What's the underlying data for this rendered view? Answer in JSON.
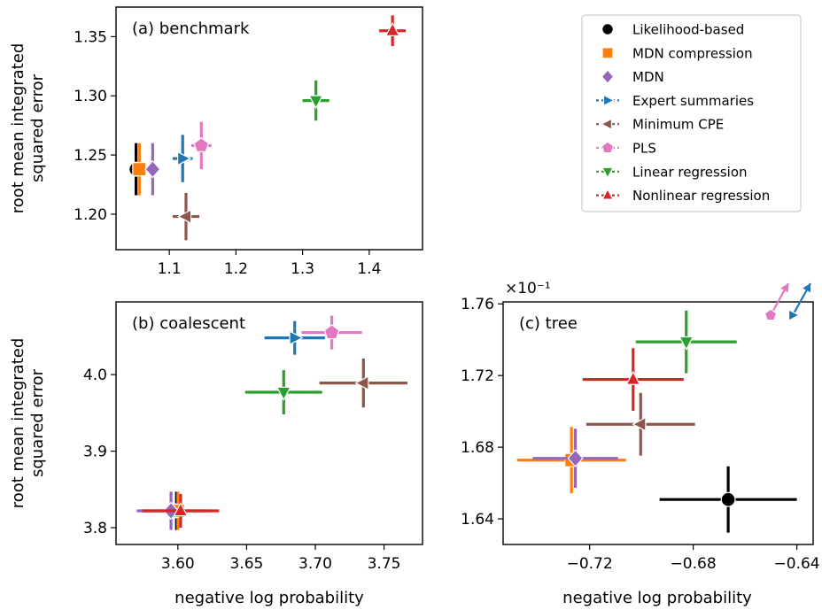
{
  "ylabel": "root mean integrated\nsquared error",
  "xlabel": "negative log probability",
  "legend_loc": "upper-right",
  "legend": [
    {
      "label": "Likelihood-based",
      "marker": "circle",
      "color": "#000000"
    },
    {
      "label": "MDN compression",
      "marker": "square",
      "color": "#ff7f0e"
    },
    {
      "label": "MDN",
      "marker": "diamond",
      "color": "#9467bd"
    },
    {
      "label": "Expert summaries",
      "marker": "tri-right",
      "color": "#1f77b4"
    },
    {
      "label": "Minimum CPE",
      "marker": "tri-left",
      "color": "#8c564b"
    },
    {
      "label": "PLS",
      "marker": "pentagon",
      "color": "#e377c2"
    },
    {
      "label": "Linear regression",
      "marker": "tri-down",
      "color": "#2ca02c"
    },
    {
      "label": "Nonlinear regression",
      "marker": "tri-up",
      "color": "#d62728"
    }
  ],
  "chart_data": [
    {
      "type": "scatter",
      "panel": "benchmark",
      "annotation": "(a) benchmark",
      "xlim": [
        1.02,
        1.48
      ],
      "ylim": [
        1.17,
        1.375
      ],
      "xticks": [
        1.1,
        1.2,
        1.3,
        1.4
      ],
      "yticks": [
        1.2,
        1.25,
        1.3,
        1.35
      ],
      "xtick_labels": [
        "1.1",
        "1.2",
        "1.3",
        "1.4"
      ],
      "ytick_labels": [
        "1.20",
        "1.25",
        "1.30",
        "1.35"
      ],
      "points": [
        {
          "series": "Likelihood-based",
          "x": 1.05,
          "y": 1.238,
          "xerr": 0.003,
          "yerr": 0.022
        },
        {
          "series": "MDN compression",
          "x": 1.055,
          "y": 1.238,
          "xerr": 0.006,
          "yerr": 0.022
        },
        {
          "series": "MDN",
          "x": 1.075,
          "y": 1.238,
          "xerr": 0.006,
          "yerr": 0.022
        },
        {
          "series": "Expert summaries",
          "x": 1.12,
          "y": 1.247,
          "xerr": 0.015,
          "yerr": 0.02
        },
        {
          "series": "Minimum CPE",
          "x": 1.125,
          "y": 1.198,
          "xerr": 0.02,
          "yerr": 0.02
        },
        {
          "series": "PLS",
          "x": 1.148,
          "y": 1.258,
          "xerr": 0.015,
          "yerr": 0.02
        },
        {
          "series": "Linear regression",
          "x": 1.32,
          "y": 1.296,
          "xerr": 0.02,
          "yerr": 0.017
        },
        {
          "series": "Nonlinear regression",
          "x": 1.435,
          "y": 1.355,
          "xerr": 0.02,
          "yerr": 0.013
        }
      ]
    },
    {
      "type": "scatter",
      "panel": "coalescent",
      "annotation": "(b) coalescent",
      "xlim": [
        3.555,
        3.778
      ],
      "ylim": [
        3.778,
        4.095
      ],
      "xticks": [
        3.6,
        3.65,
        3.7,
        3.75
      ],
      "yticks": [
        3.8,
        3.9,
        4.0
      ],
      "xtick_labels": [
        "3.60",
        "3.65",
        "3.70",
        "3.75"
      ],
      "ytick_labels": [
        "3.8",
        "3.9",
        "4.0"
      ],
      "points": [
        {
          "series": "Likelihood-based",
          "x": 3.599,
          "y": 3.822,
          "xerr": 0.003,
          "yerr": 0.025
        },
        {
          "series": "MDN compression",
          "x": 3.6,
          "y": 3.822,
          "xerr": 0.025,
          "yerr": 0.025
        },
        {
          "series": "MDN",
          "x": 3.595,
          "y": 3.822,
          "xerr": 0.025,
          "yerr": 0.025
        },
        {
          "series": "Expert summaries",
          "x": 3.685,
          "y": 4.048,
          "xerr": 0.022,
          "yerr": 0.022
        },
        {
          "series": "Minimum CPE",
          "x": 3.735,
          "y": 3.989,
          "xerr": 0.032,
          "yerr": 0.032
        },
        {
          "series": "PLS",
          "x": 3.712,
          "y": 4.055,
          "xerr": 0.022,
          "yerr": 0.022
        },
        {
          "series": "Linear regression",
          "x": 3.677,
          "y": 3.977,
          "xerr": 0.028,
          "yerr": 0.029
        },
        {
          "series": "Nonlinear regression",
          "x": 3.602,
          "y": 3.822,
          "xerr": 0.028,
          "yerr": 0.022
        }
      ]
    },
    {
      "type": "scatter",
      "panel": "tree",
      "annotation": "(c) tree",
      "scale_label": "×10⁻¹",
      "xlim": [
        -0.7534,
        -0.6337
      ],
      "ylim": [
        1.6257,
        1.7611
      ],
      "xticks": [
        -0.72,
        -0.68,
        -0.64
      ],
      "yticks": [
        1.64,
        1.68,
        1.72,
        1.76
      ],
      "xtick_labels": [
        "−0.72",
        "−0.68",
        "−0.64"
      ],
      "ytick_labels": [
        "1.64",
        "1.68",
        "1.72",
        "1.76"
      ],
      "points": [
        {
          "series": "Likelihood-based",
          "x": -0.6665,
          "y": 1.6508,
          "xerr": 0.0265,
          "yerr": 0.0185
        },
        {
          "series": "MDN compression",
          "x": -0.727,
          "y": 1.6728,
          "xerr": 0.021,
          "yerr": 0.0185
        },
        {
          "series": "MDN",
          "x": -0.7255,
          "y": 1.6738,
          "xerr": 0.0165,
          "yerr": 0.0165
        },
        {
          "series": "Minimum CPE",
          "x": -0.7003,
          "y": 1.6928,
          "xerr": 0.021,
          "yerr": 0.0175
        },
        {
          "series": "Linear regression",
          "x": -0.6827,
          "y": 1.7388,
          "xerr": 0.0195,
          "yerr": 0.0175
        },
        {
          "series": "Nonlinear regression",
          "x": -0.7032,
          "y": 1.7178,
          "xerr": 0.0195,
          "yerr": 0.0175
        }
      ],
      "off_chart": [
        {
          "series": "PLS",
          "direction": "upper-right"
        },
        {
          "series": "Expert summaries",
          "direction": "upper-right"
        }
      ]
    }
  ]
}
